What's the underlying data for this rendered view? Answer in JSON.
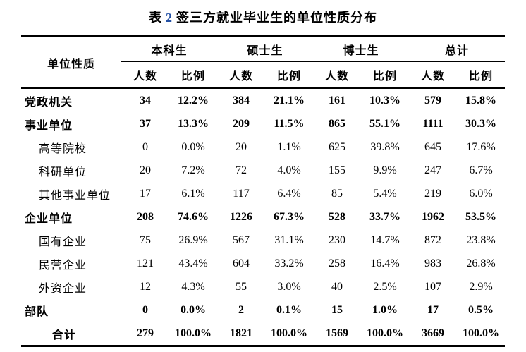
{
  "title": {
    "prefix": "表",
    "number": "2",
    "text": "签三方就业毕业生的单位性质分布",
    "number_color": "#2451a5"
  },
  "table": {
    "row_header": "单位性质",
    "groups": [
      {
        "label": "本科生"
      },
      {
        "label": "硕士生"
      },
      {
        "label": "博士生"
      },
      {
        "label": "总计"
      }
    ],
    "sub_headers": [
      "人数",
      "比例"
    ],
    "rows": [
      {
        "label": "党政机关",
        "level": "top",
        "bold": true,
        "values": [
          "34",
          "12.2%",
          "384",
          "21.1%",
          "161",
          "10.3%",
          "579",
          "15.8%"
        ]
      },
      {
        "label": "事业单位",
        "level": "top",
        "bold": true,
        "values": [
          "37",
          "13.3%",
          "209",
          "11.5%",
          "865",
          "55.1%",
          "1111",
          "30.3%"
        ]
      },
      {
        "label": "高等院校",
        "level": "sub",
        "bold": false,
        "values": [
          "0",
          "0.0%",
          "20",
          "1.1%",
          "625",
          "39.8%",
          "645",
          "17.6%"
        ]
      },
      {
        "label": "科研单位",
        "level": "sub",
        "bold": false,
        "values": [
          "20",
          "7.2%",
          "72",
          "4.0%",
          "155",
          "9.9%",
          "247",
          "6.7%"
        ]
      },
      {
        "label": "其他事业单位",
        "level": "sub",
        "bold": false,
        "values": [
          "17",
          "6.1%",
          "117",
          "6.4%",
          "85",
          "5.4%",
          "219",
          "6.0%"
        ]
      },
      {
        "label": "企业单位",
        "level": "top",
        "bold": true,
        "values": [
          "208",
          "74.6%",
          "1226",
          "67.3%",
          "528",
          "33.7%",
          "1962",
          "53.5%"
        ]
      },
      {
        "label": "国有企业",
        "level": "sub",
        "bold": false,
        "values": [
          "75",
          "26.9%",
          "567",
          "31.1%",
          "230",
          "14.7%",
          "872",
          "23.8%"
        ]
      },
      {
        "label": "民营企业",
        "level": "sub",
        "bold": false,
        "values": [
          "121",
          "43.4%",
          "604",
          "33.2%",
          "258",
          "16.4%",
          "983",
          "26.8%"
        ]
      },
      {
        "label": "外资企业",
        "level": "sub",
        "bold": false,
        "values": [
          "12",
          "4.3%",
          "55",
          "3.0%",
          "40",
          "2.5%",
          "107",
          "2.9%"
        ]
      },
      {
        "label": "部队",
        "level": "top",
        "bold": true,
        "values": [
          "0",
          "0.0%",
          "2",
          "0.1%",
          "15",
          "1.0%",
          "17",
          "0.5%"
        ]
      },
      {
        "label": "合计",
        "level": "total",
        "bold": true,
        "values": [
          "279",
          "100.0%",
          "1821",
          "100.0%",
          "1569",
          "100.0%",
          "3669",
          "100.0%"
        ]
      }
    ]
  }
}
